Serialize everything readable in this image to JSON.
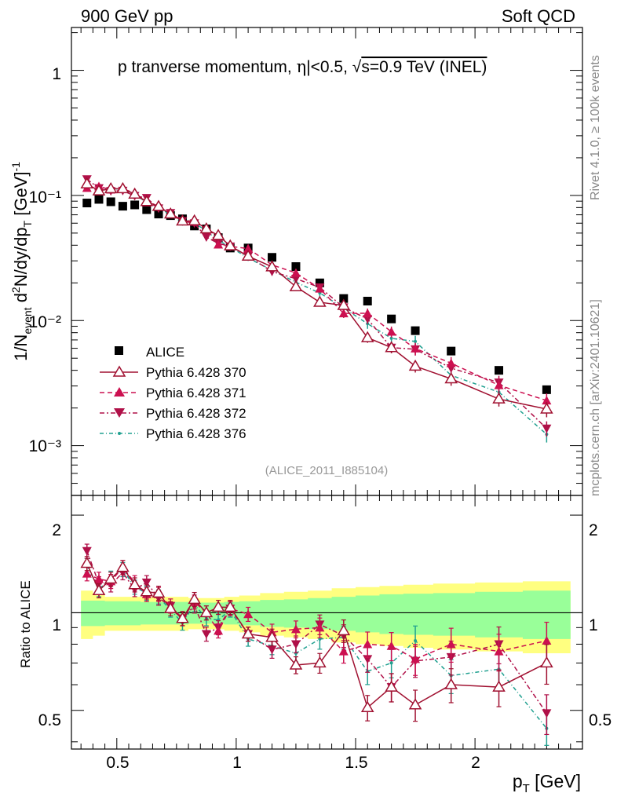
{
  "header": {
    "left": "900 GeV pp",
    "right": "Soft QCD"
  },
  "side_labels": {
    "rivet": "Rivet 4.1.0, ≥ 100k events",
    "mcplots": "mcplots.cern.ch [arXiv:2401.10621]"
  },
  "analysis_id": "(ALICE_2011_I885104)",
  "chart_data": {
    "type": "scatter",
    "title": "p tranverse momentum, |η|<0.5, √s=0.9 TeV (INEL)",
    "title_parts": [
      "p tranverse momentum, ",
      "η",
      "|<0.5, ",
      "√",
      "s=0.9 TeV (INEL)"
    ],
    "xlabel": "p_T [GeV]",
    "xlabel_parts": {
      "main": "p",
      "sub": "T",
      "unit": " [GeV]"
    },
    "ylabel_parts": [
      "1/N",
      "event",
      " d",
      "2",
      "N/dy/dp",
      "T",
      " [GeV]",
      "-1"
    ],
    "ratio_ylabel": "Ratio to ALICE",
    "xlim": [
      0.31,
      2.45
    ],
    "ylim": [
      0.0004,
      2.2
    ],
    "yscale": "log",
    "ratio_ylim": [
      0.38,
      2.3
    ],
    "x_ticks": [
      "0.5",
      "1",
      "1.5",
      "2"
    ],
    "y_ticks": [
      "1",
      "10⁻¹",
      "10⁻²",
      "10⁻³"
    ],
    "ratio_ticks": [
      "0.5",
      "1",
      "2"
    ],
    "x": [
      0.375,
      0.425,
      0.475,
      0.525,
      0.575,
      0.625,
      0.675,
      0.725,
      0.775,
      0.825,
      0.875,
      0.925,
      0.975,
      1.05,
      1.15,
      1.25,
      1.35,
      1.45,
      1.55,
      1.65,
      1.75,
      1.9,
      2.1,
      2.3
    ],
    "data": {
      "name": "ALICE",
      "values": [
        0.087,
        0.093,
        0.089,
        0.082,
        0.084,
        0.077,
        0.071,
        0.069,
        0.065,
        0.057,
        0.054,
        0.046,
        0.038,
        0.038,
        0.032,
        0.027,
        0.02,
        0.015,
        0.0143,
        0.0103,
        0.0083,
        0.0057,
        0.004,
        0.0028
      ],
      "band_inner": [
        0.09,
        0.09,
        0.085,
        0.085,
        0.085,
        0.08,
        0.08,
        0.08,
        0.08,
        0.075,
        0.075,
        0.075,
        0.08,
        0.085,
        0.095,
        0.1,
        0.11,
        0.12,
        0.13,
        0.14,
        0.145,
        0.15,
        0.16,
        0.17
      ],
      "band_outer": [
        0.17,
        0.15,
        0.12,
        0.12,
        0.12,
        0.12,
        0.12,
        0.12,
        0.12,
        0.11,
        0.11,
        0.11,
        0.12,
        0.13,
        0.15,
        0.16,
        0.17,
        0.19,
        0.2,
        0.21,
        0.22,
        0.23,
        0.24,
        0.25
      ]
    },
    "series": [
      {
        "name": "Pythia 6.428 370",
        "color": "#a01030",
        "marker": "triangle-open",
        "dash": "none",
        "ratio": [
          1.42,
          1.17,
          1.27,
          1.38,
          1.22,
          1.16,
          1.15,
          1.03,
          0.96,
          1.1,
          1.0,
          1.04,
          1.04,
          0.86,
          0.84,
          0.69,
          0.7,
          0.88,
          0.51,
          0.59,
          0.52,
          0.6,
          0.59,
          0.7
        ],
        "err": [
          0.05,
          0.05,
          0.05,
          0.05,
          0.05,
          0.05,
          0.05,
          0.05,
          0.05,
          0.05,
          0.05,
          0.05,
          0.05,
          0.05,
          0.06,
          0.06,
          0.07,
          0.08,
          0.09,
          0.1,
          0.11,
          0.12,
          0.13,
          0.14
        ]
      },
      {
        "name": "Pythia 6.428 371",
        "color": "#cc1050",
        "marker": "triangle-up",
        "dash": "6,4",
        "ratio": [
          1.32,
          1.27,
          1.25,
          1.38,
          1.24,
          1.14,
          1.14,
          1.05,
          0.96,
          1.08,
          1.0,
          0.88,
          1.03,
          0.99,
          0.87,
          0.89,
          0.9,
          0.76,
          0.8,
          0.79,
          0.72,
          0.8,
          0.76,
          0.82
        ],
        "err": [
          0.05,
          0.05,
          0.05,
          0.05,
          0.05,
          0.05,
          0.05,
          0.05,
          0.05,
          0.05,
          0.05,
          0.05,
          0.05,
          0.05,
          0.06,
          0.06,
          0.07,
          0.08,
          0.09,
          0.1,
          0.11,
          0.12,
          0.13,
          0.14
        ]
      },
      {
        "name": "Pythia 6.428 372",
        "color": "#b01048",
        "marker": "triangle-down",
        "dash": "6,3,2,3",
        "ratio": [
          1.55,
          1.23,
          1.22,
          1.33,
          1.18,
          1.24,
          1.11,
          1.05,
          0.96,
          1.05,
          0.86,
          0.9,
          1.03,
          0.86,
          0.77,
          0.8,
          0.92,
          0.85,
          0.72,
          0.59,
          0.71,
          0.73,
          0.8,
          0.49
        ],
        "err": [
          0.05,
          0.05,
          0.05,
          0.05,
          0.05,
          0.05,
          0.05,
          0.05,
          0.05,
          0.05,
          0.05,
          0.05,
          0.05,
          0.05,
          0.06,
          0.06,
          0.07,
          0.08,
          0.09,
          0.1,
          0.11,
          0.12,
          0.13,
          0.14
        ]
      },
      {
        "name": "Pythia 6.428 376",
        "color": "#20a090",
        "marker": "dot",
        "dash": "5,3,1,3",
        "ratio": [
          1.4,
          1.18,
          1.28,
          1.36,
          1.2,
          1.15,
          1.12,
          1.02,
          0.93,
          1.06,
          0.96,
          0.95,
          1.02,
          0.83,
          0.79,
          0.75,
          0.83,
          0.84,
          0.66,
          0.7,
          0.82,
          0.64,
          0.67,
          0.44
        ],
        "err": [
          0.05,
          0.05,
          0.05,
          0.05,
          0.05,
          0.05,
          0.05,
          0.05,
          0.05,
          0.05,
          0.05,
          0.05,
          0.05,
          0.05,
          0.06,
          0.06,
          0.07,
          0.08,
          0.09,
          0.1,
          0.11,
          0.12,
          0.13,
          0.14
        ]
      }
    ],
    "legend_position": "lower-left",
    "grid": false
  }
}
